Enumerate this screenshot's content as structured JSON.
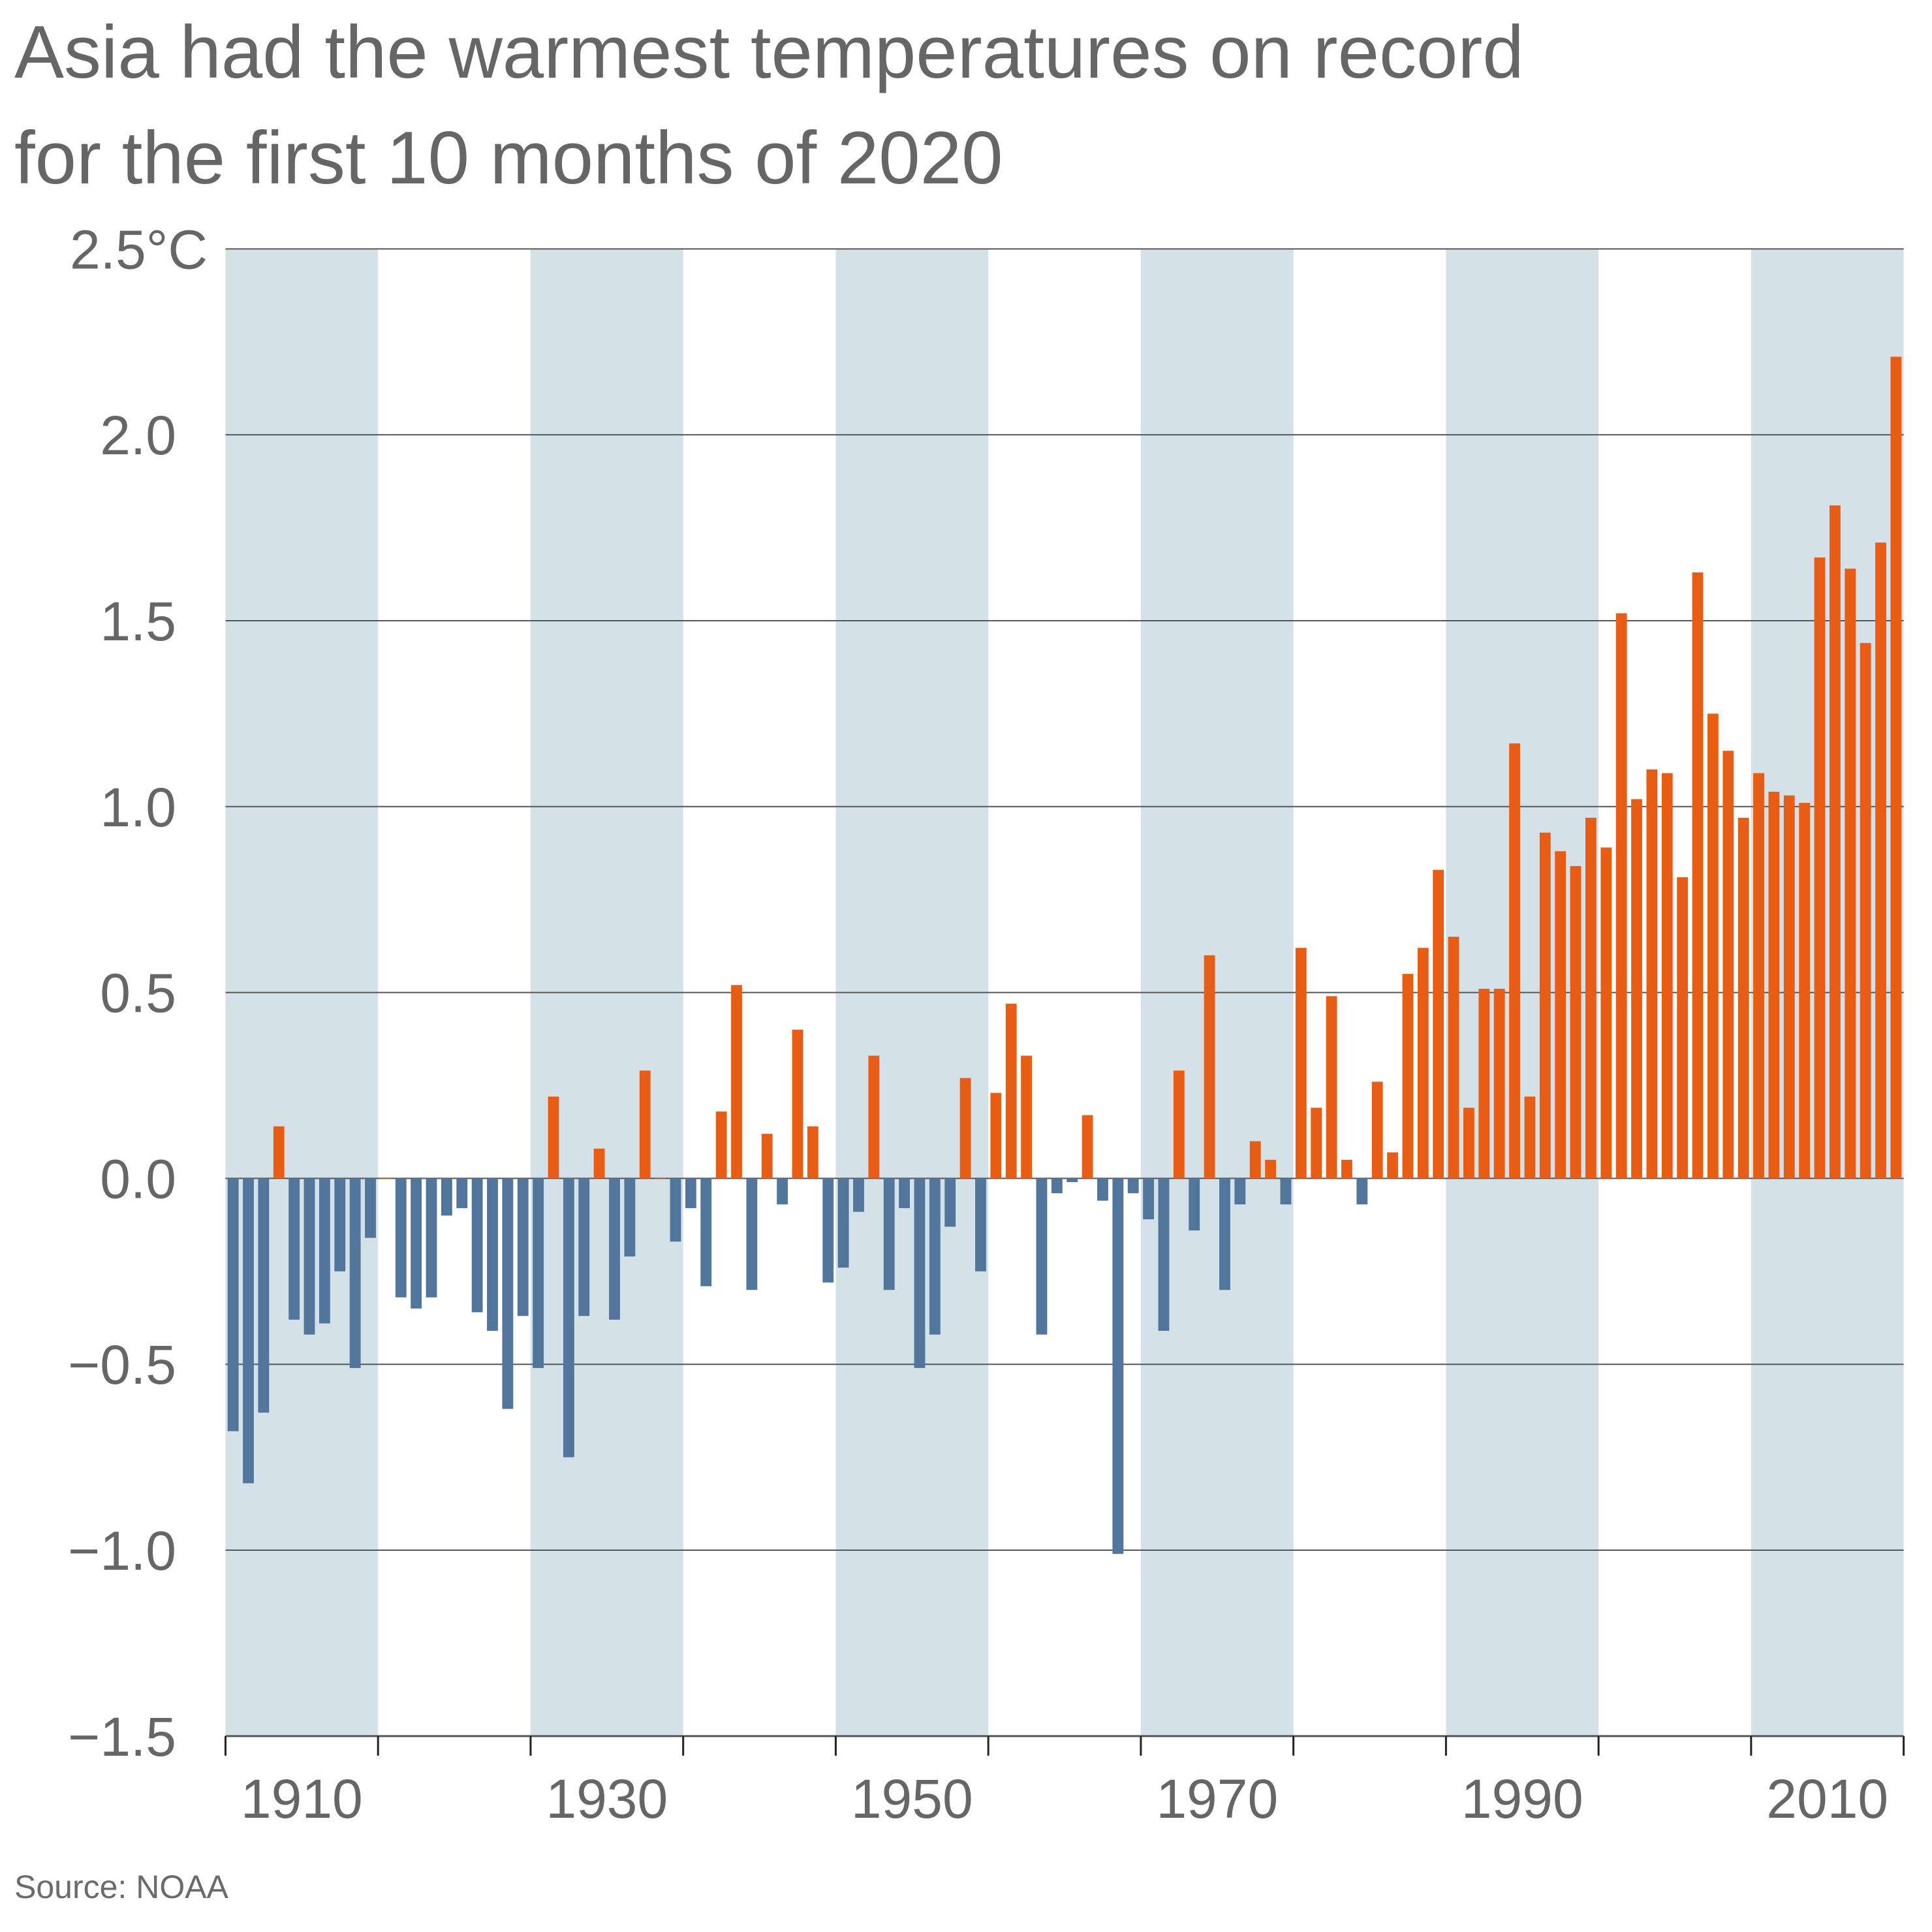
{
  "chart_data": {
    "type": "bar",
    "title": "Asia had the warmest temperatures on record for the first 10 months of 2020",
    "title_lines": [
      "Asia had the warmest temperatures on record",
      "for the first 10 months of 2020"
    ],
    "xlabel": "",
    "ylabel": "",
    "ylim": [
      -1.5,
      2.5
    ],
    "yticks": [
      2.5,
      2.0,
      1.5,
      1.0,
      0.5,
      0.0,
      -0.5,
      -1.0,
      -1.5
    ],
    "ytick_labels": [
      "2.5°C",
      "2.0",
      "1.5",
      "1.0",
      "0.5",
      "0.0",
      "−0.5",
      "−1.0",
      "−1.5"
    ],
    "xticks_labeled": [
      "1910",
      "1930",
      "1950",
      "1970",
      "1990",
      "2010"
    ],
    "x_start_year": 1910,
    "x_end_year": 2019,
    "grid": true,
    "shaded_decades": [
      1910,
      1930,
      1950,
      1970,
      1990,
      2010
    ],
    "colors": {
      "positive": "#e85d13",
      "negative": "#52759c",
      "band": "#d5e1e9",
      "grid": "#555555"
    },
    "source": "Source: NOAA",
    "values": [
      -0.68,
      -0.82,
      -0.63,
      0.14,
      -0.38,
      -0.42,
      -0.39,
      -0.25,
      -0.51,
      -0.16,
      0.0,
      -0.32,
      -0.35,
      -0.32,
      -0.1,
      -0.08,
      -0.36,
      -0.41,
      -0.62,
      -0.37,
      -0.51,
      0.22,
      -0.75,
      -0.37,
      0.08,
      -0.38,
      -0.21,
      0.29,
      0.0,
      -0.17,
      -0.08,
      -0.29,
      0.18,
      0.52,
      -0.3,
      0.12,
      -0.07,
      0.4,
      0.14,
      -0.28,
      -0.24,
      -0.09,
      0.33,
      -0.3,
      -0.08,
      -0.51,
      -0.42,
      -0.13,
      0.27,
      -0.25,
      0.23,
      0.47,
      0.33,
      -0.42,
      -0.04,
      -0.01,
      0.17,
      -0.06,
      -1.01,
      -0.04,
      -0.11,
      -0.41,
      0.29,
      -0.14,
      0.6,
      -0.3,
      -0.07,
      0.1,
      0.05,
      -0.07,
      0.62,
      0.19,
      0.49,
      0.05,
      -0.07,
      0.26,
      0.07,
      0.55,
      0.62,
      0.83,
      0.65,
      0.19,
      0.51,
      0.51,
      1.17,
      0.22,
      0.93,
      0.88,
      0.84,
      0.97,
      0.89,
      1.52,
      1.02,
      1.1,
      1.09,
      0.81,
      1.63,
      1.25,
      1.15,
      0.97,
      1.09,
      1.04,
      1.03,
      1.01,
      1.67,
      1.81,
      1.64,
      1.44,
      1.71,
      2.21
    ]
  }
}
